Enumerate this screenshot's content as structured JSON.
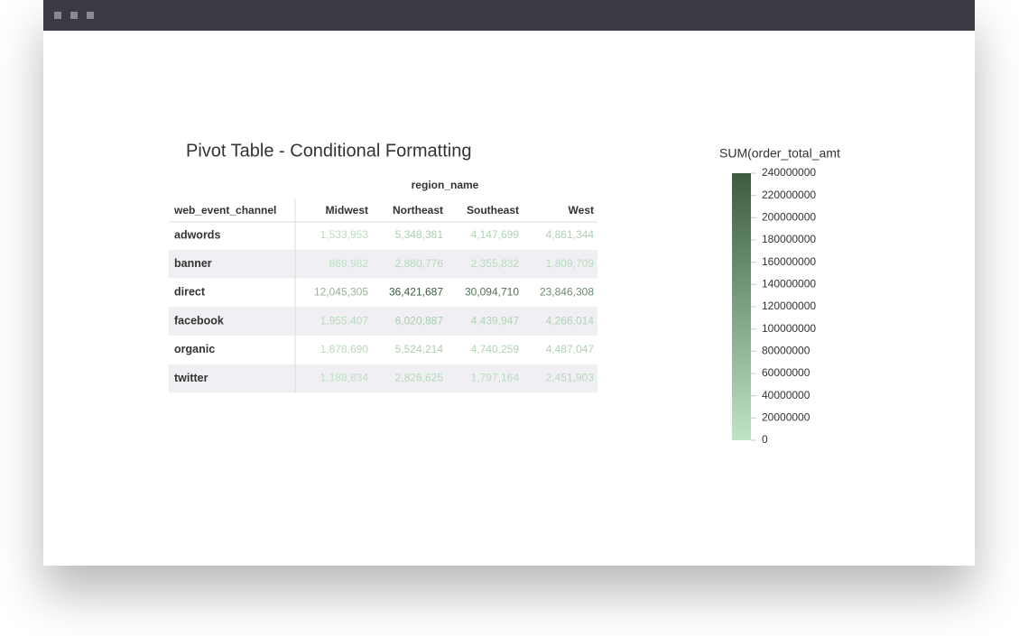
{
  "title": "Pivot Table - Conditional Formatting",
  "table": {
    "column_group": "region_name",
    "row_header": "web_event_channel",
    "columns": [
      "Midwest",
      "Northeast",
      "Southeast",
      "West"
    ],
    "rows": [
      [
        "adwords",
        "1,533,953",
        "5,348,381",
        "4,147,699",
        "4,861,344"
      ],
      [
        "banner",
        "869,982",
        "2,880,776",
        "2,355,832",
        "1,809,709"
      ],
      [
        "direct",
        "12,045,305",
        "36,421,687",
        "30,094,710",
        "23,846,308"
      ],
      [
        "facebook",
        "1,955,407",
        "6,020,887",
        "4,439,947",
        "4,266,014"
      ],
      [
        "organic",
        "1,878,690",
        "5,524,214",
        "4,740,259",
        "4,487,047"
      ],
      [
        "twitter",
        "1,188,834",
        "2,826,625",
        "1,797,164",
        "2,451,903"
      ]
    ]
  },
  "legend": {
    "title": "SUM(order_total_amt",
    "range": [
      0,
      240000000
    ],
    "ticks": [
      0,
      20000000,
      40000000,
      60000000,
      80000000,
      100000000,
      120000000,
      140000000,
      160000000,
      180000000,
      200000000,
      220000000,
      240000000
    ],
    "colors": [
      "#bfe3c4",
      "#3b5c3f"
    ]
  }
}
